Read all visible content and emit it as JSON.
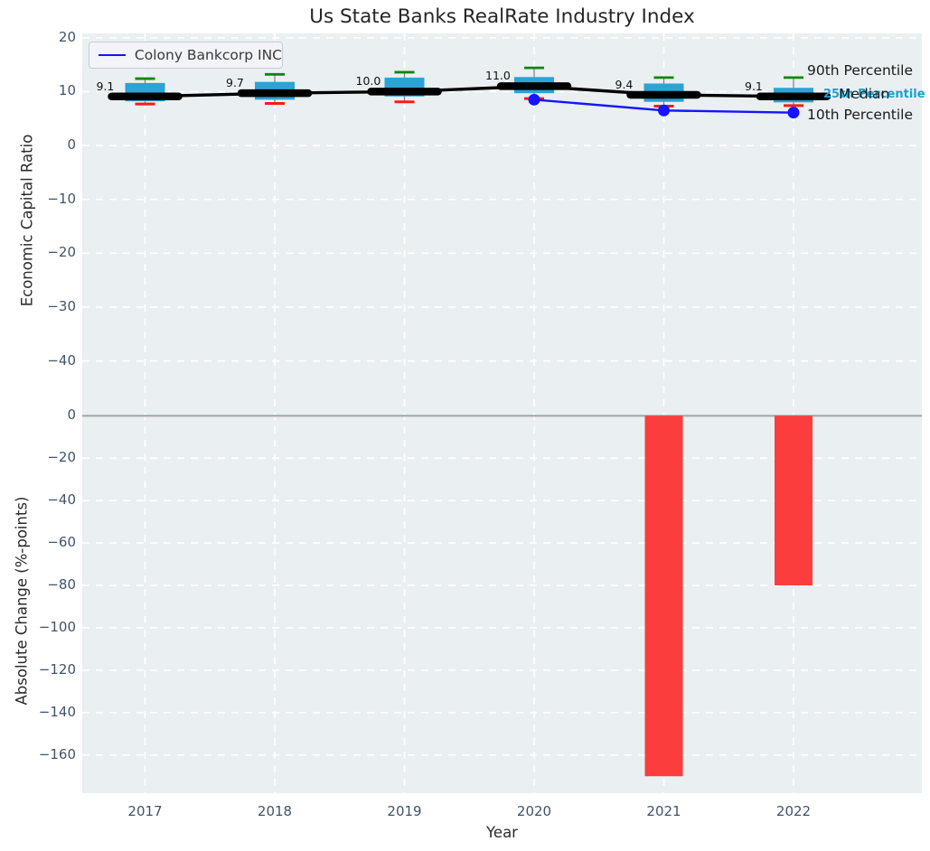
{
  "title": "Us State Banks RealRate Industry Index",
  "legend": {
    "company_label": "Colony Bankcorp INC"
  },
  "right_labels": {
    "p90": "90th Percentile",
    "median": "Median",
    "p25": "25th Percentile",
    "p10": "10th Percentile"
  },
  "chart_data": {
    "type": [
      "boxplot",
      "line",
      "bar"
    ],
    "title": "Us State Banks RealRate Industry Index",
    "xlabel": "Year",
    "categories": [
      2017,
      2018,
      2019,
      2020,
      2021,
      2022
    ],
    "grid": "white dashed on light panel background",
    "legend_position": "upper left",
    "top": {
      "ylabel": "Economic Capital Ratio",
      "ylim": [
        -48.8,
        20.8
      ],
      "yticks": [
        20,
        10,
        0,
        -10,
        -20,
        -30,
        -40
      ],
      "boxes": [
        {
          "year": 2017,
          "p90": 12.4,
          "q3": 11.6,
          "median": 9.1,
          "q1": 8.2,
          "p10": 7.7,
          "label": "9.1"
        },
        {
          "year": 2018,
          "p90": 13.2,
          "q3": 11.8,
          "median": 9.7,
          "q1": 8.5,
          "p10": 7.8,
          "label": "9.7"
        },
        {
          "year": 2019,
          "p90": 13.6,
          "q3": 12.6,
          "median": 10.0,
          "q1": 9.1,
          "p10": 8.1,
          "label": "10.0"
        },
        {
          "year": 2020,
          "p90": 14.4,
          "q3": 12.7,
          "median": 11.0,
          "q1": 9.7,
          "p10": 8.7,
          "label": "11.0"
        },
        {
          "year": 2021,
          "p90": 12.6,
          "q3": 11.5,
          "median": 9.4,
          "q1": 8.1,
          "p10": 7.3,
          "label": "9.4"
        },
        {
          "year": 2022,
          "p90": 12.6,
          "q3": 10.7,
          "median": 9.1,
          "q1": 8.0,
          "p10": 7.4,
          "label": "9.1"
        }
      ],
      "company_line": {
        "name": "Colony Bankcorp INC",
        "points": [
          {
            "year": 2020,
            "value": 8.5
          },
          {
            "year": 2021,
            "value": 6.5
          },
          {
            "year": 2022,
            "value": 6.1
          }
        ]
      }
    },
    "bottom": {
      "ylabel": "Absolute Change (%-points)",
      "ylim": [
        -178,
        3.5
      ],
      "yticks": [
        0,
        -20,
        -40,
        -60,
        -80,
        -100,
        -120,
        -140,
        -160
      ],
      "bars": [
        {
          "year": 2021,
          "value": -170
        },
        {
          "year": 2022,
          "value": -80
        }
      ]
    },
    "colors": {
      "box_fill": "#2ba3d4",
      "whisker_cap_top": "#0c870c",
      "whisker_cap_bottom": "#f81b1b",
      "whisker_line": "#7f7f7f",
      "median_line": "#000000",
      "company_line": "#1414ff",
      "bar_fill": "#fb3d3d",
      "panel_background": "#eaeff1",
      "gridline": "#ffffff",
      "zero_line": "#ababab",
      "tick_label": "#42536b"
    }
  }
}
